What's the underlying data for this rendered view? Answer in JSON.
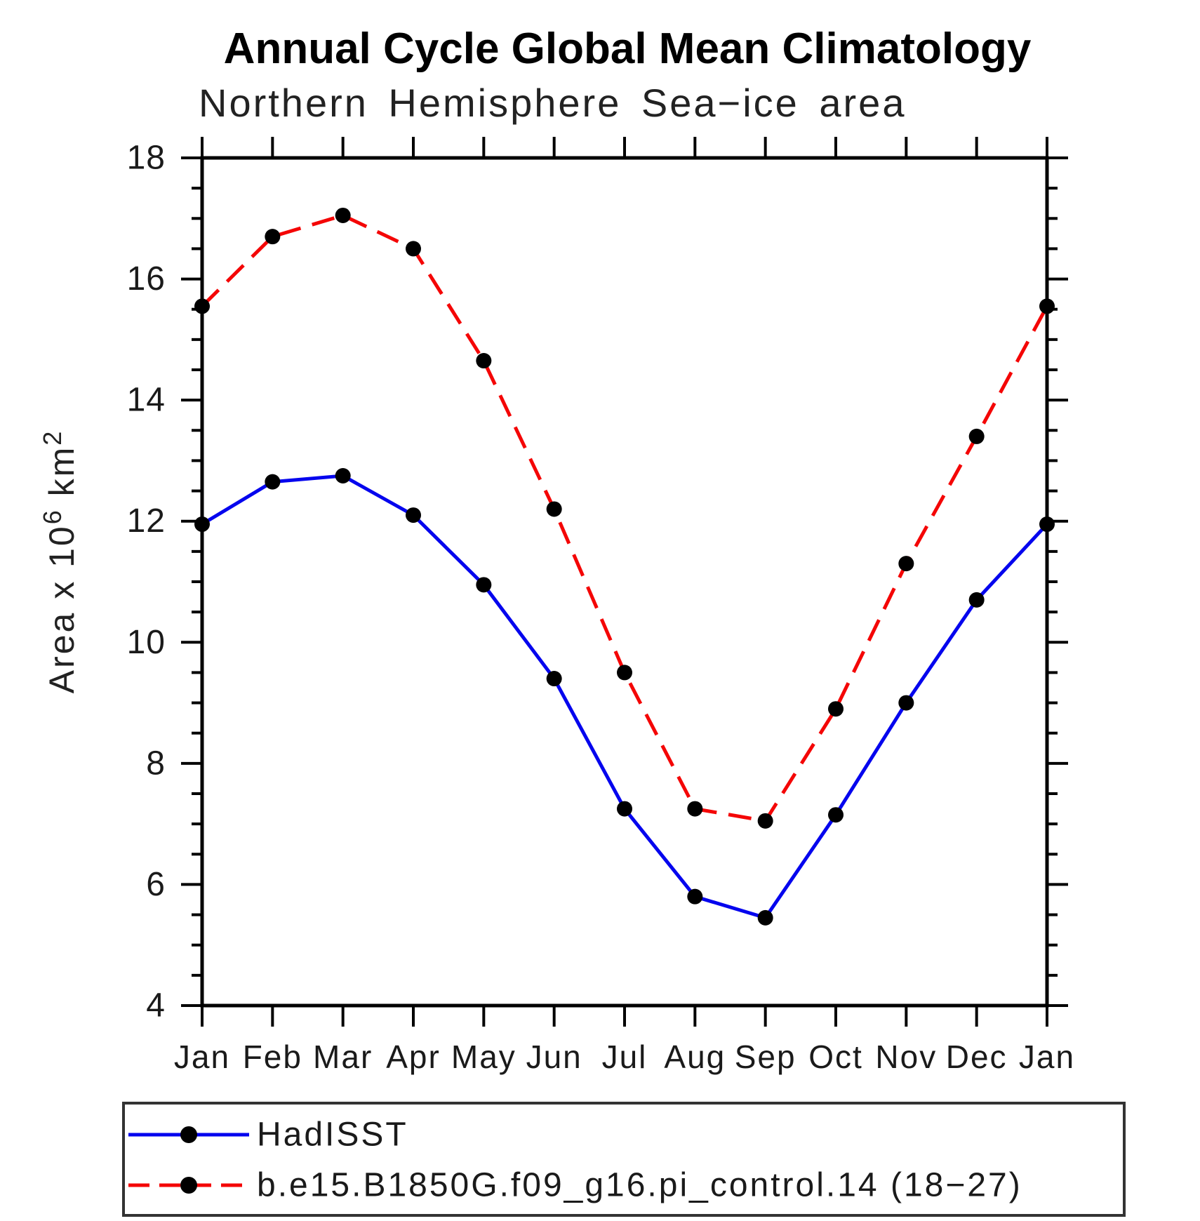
{
  "title": "Annual Cycle Global Mean Climatology",
  "subtitle": "Northern Hemisphere Sea−ice area",
  "y_axis_label_parts": {
    "base1": "Area x 10",
    "sup1": "6",
    "base2": " km",
    "sup2": "2"
  },
  "chart_data": {
    "type": "line",
    "title": "Annual Cycle Global Mean Climatology",
    "subtitle": "Northern Hemisphere Sea−ice area",
    "ylabel": "Area x 10^6 km^2",
    "xlabel": "",
    "categories": [
      "Jan",
      "Feb",
      "Mar",
      "Apr",
      "May",
      "Jun",
      "Jul",
      "Aug",
      "Sep",
      "Oct",
      "Nov",
      "Dec",
      "Jan"
    ],
    "series": [
      {
        "name": "HadISST",
        "color": "#0505ee",
        "line_style": "solid",
        "marker": "filled-circle",
        "marker_color": "#000000",
        "values": [
          11.95,
          12.65,
          12.75,
          12.1,
          10.95,
          9.4,
          7.25,
          5.8,
          5.45,
          7.15,
          9.0,
          10.7,
          11.95
        ]
      },
      {
        "name": "b.e15.B1850G.f09_g16.pi_control.14 (18−27)",
        "color": "#f40606",
        "line_style": "dashed",
        "marker": "filled-circle",
        "marker_color": "#000000",
        "values": [
          15.55,
          16.7,
          17.05,
          16.5,
          14.65,
          12.2,
          9.5,
          7.25,
          7.05,
          8.9,
          11.3,
          13.4,
          15.55
        ]
      }
    ],
    "ylim": [
      4,
      18
    ],
    "ytick_major_interval": 2,
    "ytick_minor_interval": 0.5,
    "grid": false,
    "tick_direction": "out",
    "legend_position": "bottom-box"
  },
  "colors": {
    "axis": "#000000",
    "text": "#1a1a1a",
    "hadisst_blue": "#0505ee",
    "model_red": "#f40606",
    "marker_black": "#000000",
    "legend_border": "#333333"
  }
}
